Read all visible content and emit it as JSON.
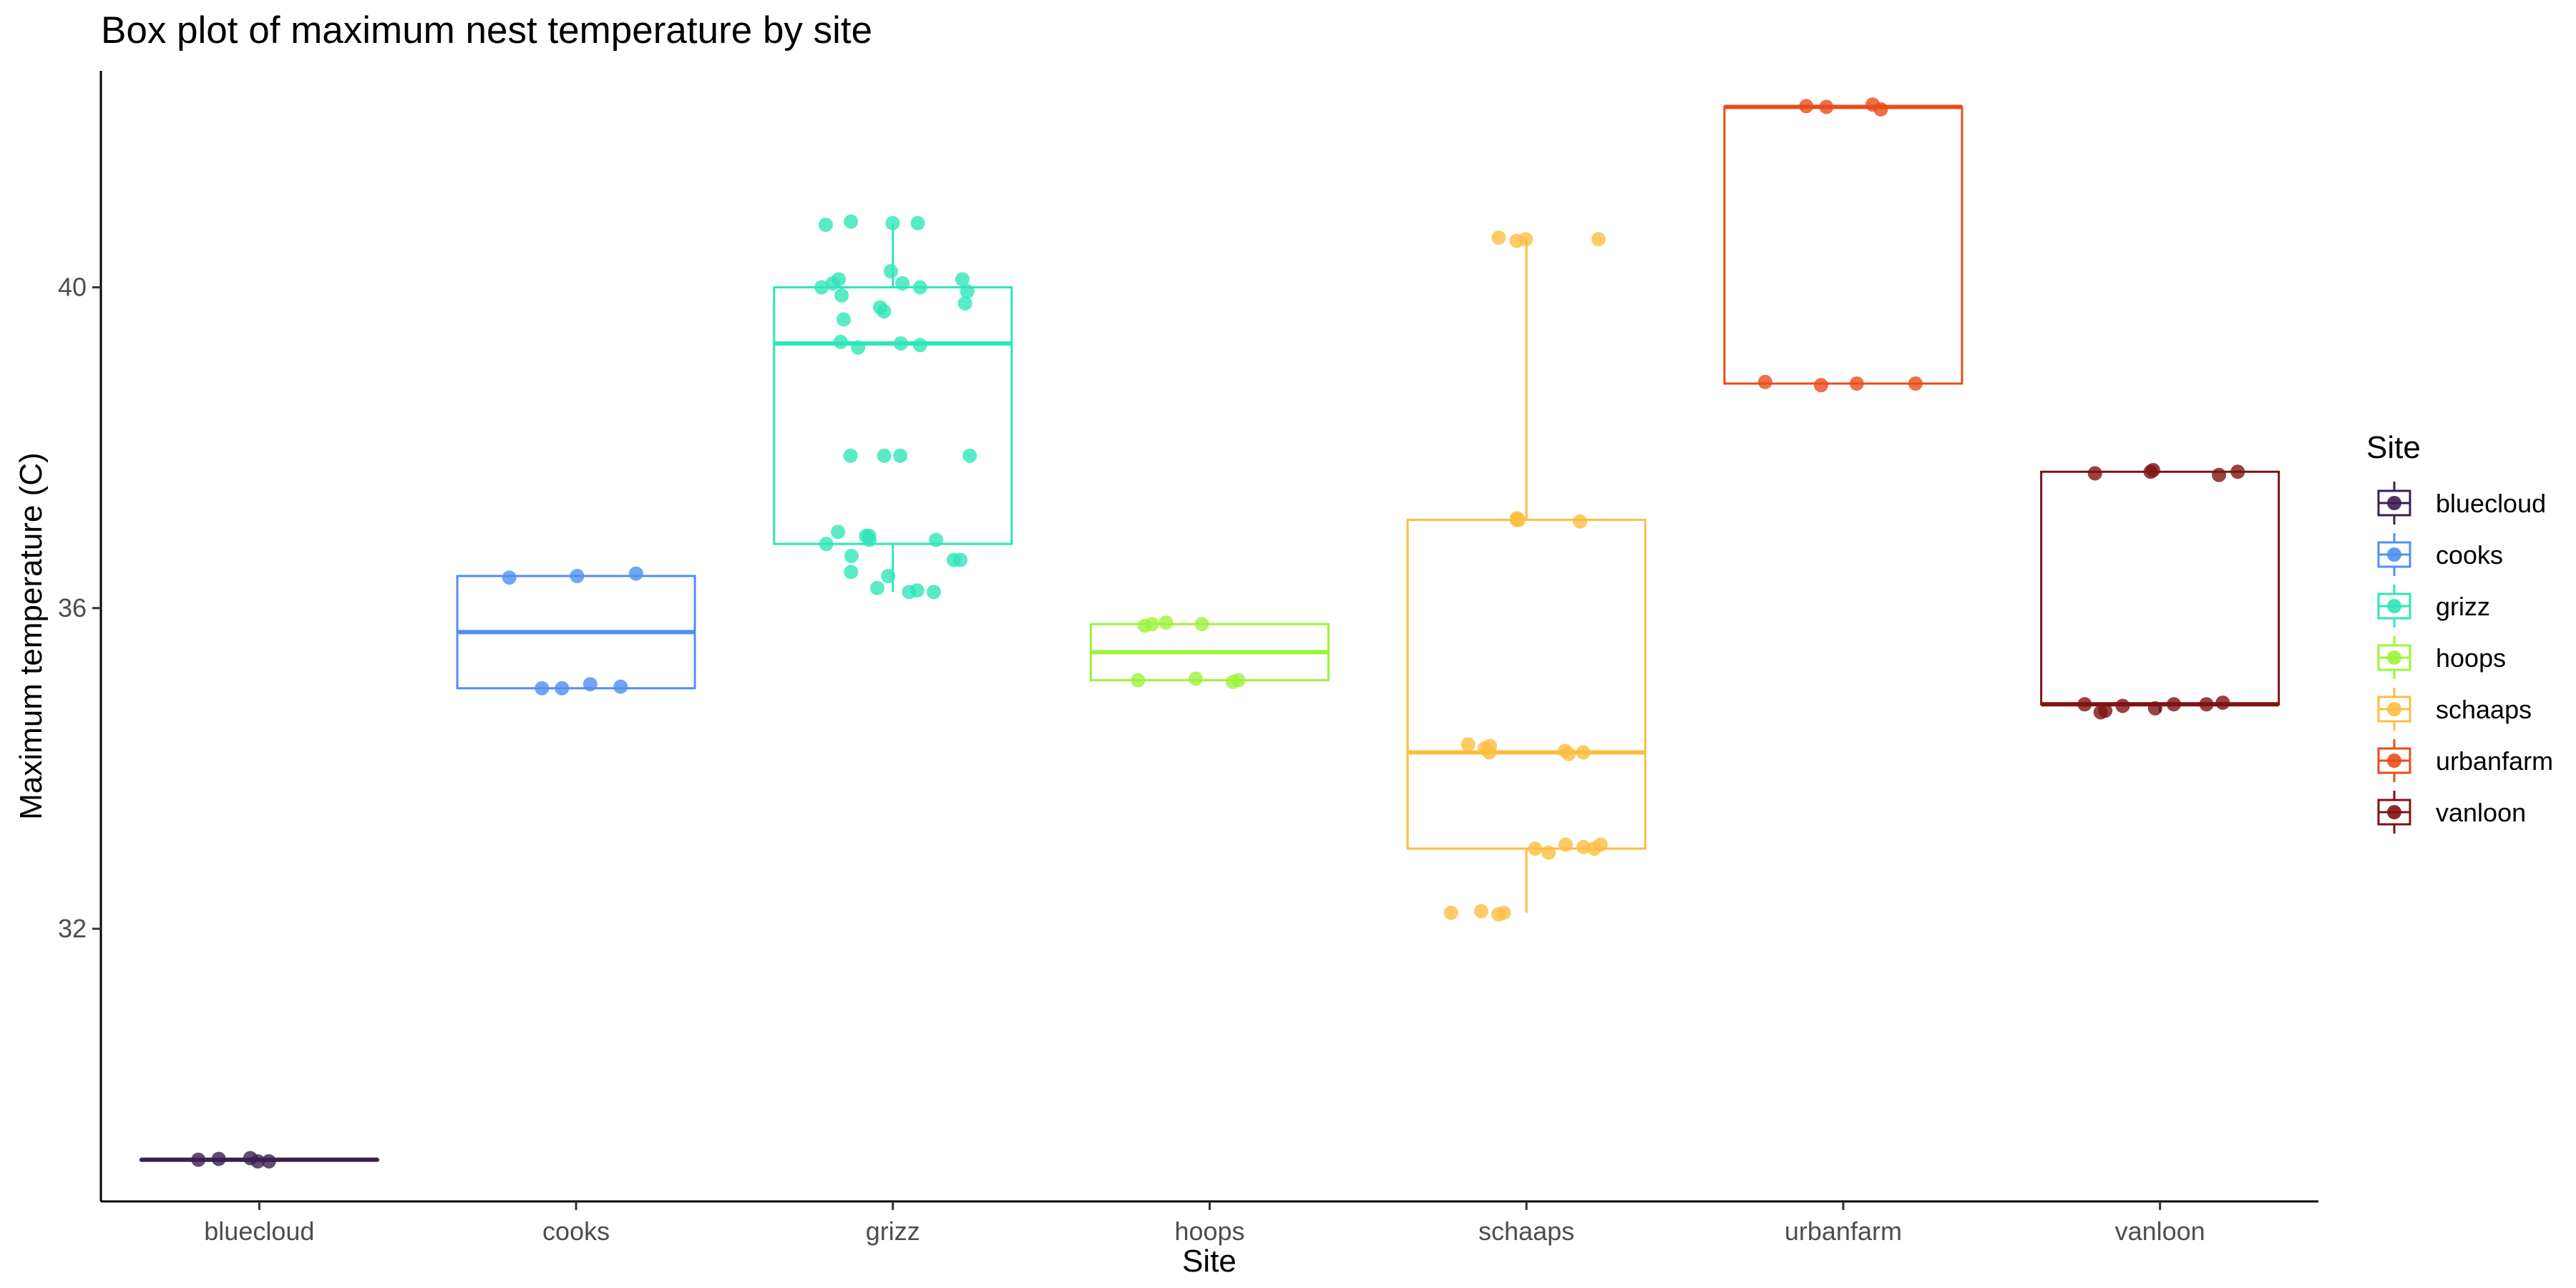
{
  "chart_data": {
    "type": "box",
    "title": "Box plot of maximum nest temperature by site",
    "xlabel": "Site",
    "ylabel": "Maximum temperature (C)",
    "ylim": [
      28.6,
      42.7
    ],
    "yticks": [
      32,
      36,
      40
    ],
    "grid": false,
    "legend": {
      "title": "Site",
      "position": "right"
    },
    "categories": [
      "bluecloud",
      "cooks",
      "grizz",
      "hoops",
      "schaaps",
      "urbanfarm",
      "vanloon"
    ],
    "colors": {
      "bluecloud": "#3b1f4f",
      "cooks": "#4f8ff2",
      "grizz": "#2ee6b8",
      "hoops": "#9ef33a",
      "schaaps": "#fbbe41",
      "urbanfarm": "#e84c1a",
      "vanloon": "#7f1313"
    },
    "series": [
      {
        "name": "bluecloud",
        "box": {
          "min": 29.12,
          "q1": 29.12,
          "median": 29.12,
          "q3": 29.12,
          "max": 29.12
        },
        "points": [
          29.1,
          29.1,
          29.12,
          29.13,
          29.14
        ]
      },
      {
        "name": "cooks",
        "box": {
          "min": 35.0,
          "q1": 35.0,
          "median": 35.7,
          "q3": 36.4,
          "max": 36.4
        },
        "points": [
          36.4,
          36.38,
          36.43,
          35.05,
          35.0,
          35.0,
          35.02
        ]
      },
      {
        "name": "grizz",
        "box": {
          "min": 36.2,
          "q1": 36.8,
          "median": 39.3,
          "q3": 40.0,
          "max": 40.8
        },
        "points": [
          40.8,
          40.78,
          40.8,
          40.82,
          40.0,
          40.1,
          40.05,
          40.2,
          39.9,
          40.0,
          40.1,
          39.95,
          40.05,
          39.7,
          39.8,
          39.6,
          39.75,
          39.3,
          39.28,
          39.25,
          39.32,
          37.9,
          37.9,
          37.9,
          37.9,
          36.9,
          36.95,
          36.85,
          36.85,
          36.9,
          36.8,
          36.6,
          36.65,
          36.6,
          36.4,
          36.45,
          36.2,
          36.25,
          36.2,
          36.22
        ]
      },
      {
        "name": "hoops",
        "box": {
          "min": 35.1,
          "q1": 35.1,
          "median": 35.45,
          "q3": 35.8,
          "max": 35.8
        },
        "points": [
          35.8,
          35.82,
          35.8,
          35.78,
          35.1,
          35.12,
          35.1,
          35.08
        ]
      },
      {
        "name": "schaaps",
        "box": {
          "min": 32.2,
          "q1": 33.0,
          "median": 34.2,
          "q3": 37.1,
          "max": 40.6
        },
        "points": [
          40.6,
          40.62,
          40.58,
          40.6,
          37.1,
          37.08,
          37.1,
          37.12,
          34.2,
          34.25,
          34.22,
          34.3,
          34.28,
          34.18,
          34.2,
          33.05,
          33.0,
          33.02,
          33.05,
          32.95,
          33.0,
          32.2,
          32.18,
          32.2,
          32.22
        ]
      },
      {
        "name": "urbanfarm",
        "box": {
          "min": 38.8,
          "q1": 38.8,
          "median": 42.25,
          "q3": 42.25,
          "max": 42.25
        },
        "points": [
          42.25,
          42.28,
          42.22,
          42.26,
          38.8,
          38.82,
          38.78,
          38.8
        ]
      },
      {
        "name": "vanloon",
        "box": {
          "min": 34.7,
          "q1": 34.8,
          "median": 34.8,
          "q3": 37.7,
          "max": 37.7
        },
        "points": [
          37.7,
          37.68,
          37.7,
          37.72,
          37.66,
          34.8,
          34.75,
          34.7,
          34.8,
          34.82,
          34.78,
          34.8,
          34.72
        ]
      }
    ]
  }
}
